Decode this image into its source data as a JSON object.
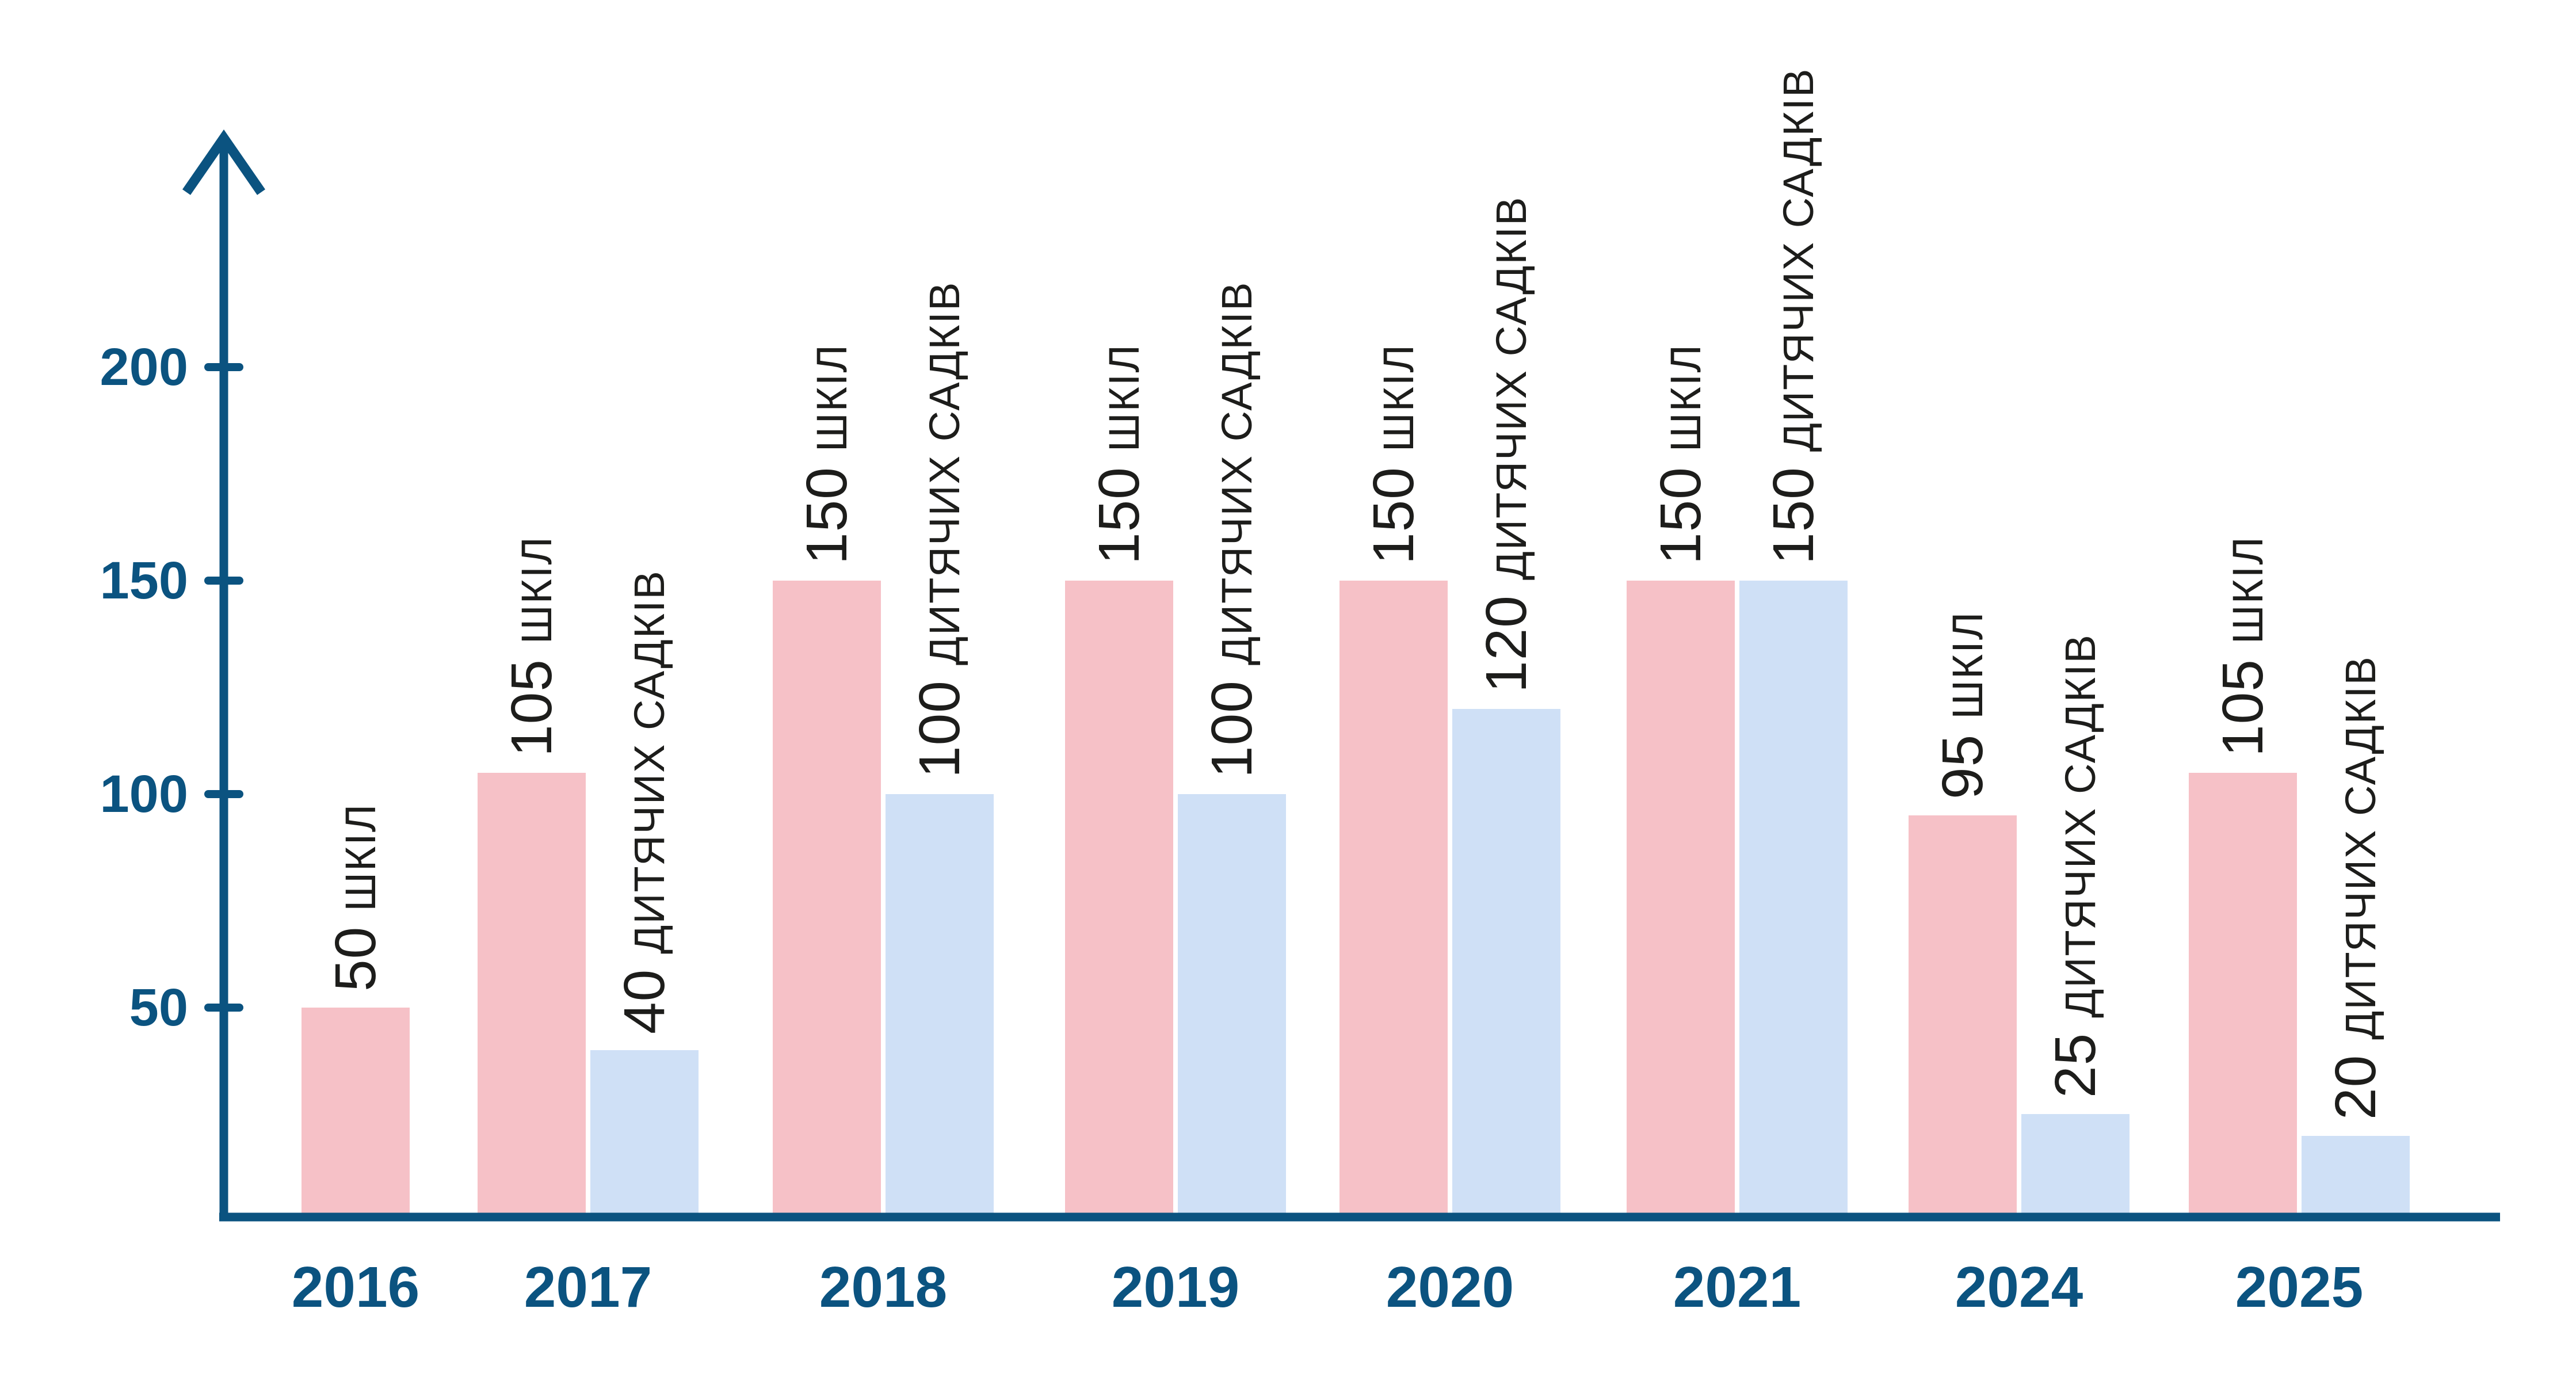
{
  "chart_data": {
    "type": "bar",
    "title": "",
    "categories": [
      "2016",
      "2017",
      "2018",
      "2019",
      "2020",
      "2021",
      "2024",
      "2025"
    ],
    "series": [
      {
        "name": "шкіл",
        "color": "#f6c1c7",
        "values": [
          50,
          105,
          150,
          150,
          150,
          150,
          95,
          105
        ]
      },
      {
        "name": "дитячих садків",
        "color": "#cfe0f6",
        "values": [
          null,
          40,
          100,
          100,
          120,
          150,
          25,
          20
        ]
      }
    ],
    "bar_annotations": [
      {
        "year": "2016",
        "schools": "50 шкіл",
        "kindergartens": null
      },
      {
        "year": "2017",
        "schools": "105 шкіл",
        "kindergartens": "40 дитячих садків"
      },
      {
        "year": "2018",
        "schools": "150 шкіл",
        "kindergartens": "100 дитячих садків"
      },
      {
        "year": "2019",
        "schools": "150 шкіл",
        "kindergartens": "100 дитячих садків"
      },
      {
        "year": "2020",
        "schools": "150 шкіл",
        "kindergartens": "120 дитячих садків"
      },
      {
        "year": "2021",
        "schools": "150 шкіл",
        "kindergartens": "150 дитячих садків"
      },
      {
        "year": "2024",
        "schools": "95 шкіл",
        "kindergartens": "25 дитячих садків"
      },
      {
        "year": "2025",
        "schools": "105 шкіл",
        "kindergartens": "20 дитячих садків"
      }
    ],
    "y_axis": {
      "ticks": [
        50,
        100,
        150,
        200
      ],
      "min": 0,
      "arrow_top": true
    },
    "x_axis": {
      "labels": [
        "2016",
        "2017",
        "2018",
        "2019",
        "2020",
        "2021",
        "2024",
        "2025"
      ]
    },
    "colors": {
      "axis": "#0b5380",
      "schools_bar": "#f6c1c7",
      "kindergartens_bar": "#cfe0f6",
      "annotation_text": "#1d1d1b"
    },
    "grid": false,
    "legend_position": "none",
    "annotation_orientation": "rotated-90-ccw-above-bars"
  }
}
